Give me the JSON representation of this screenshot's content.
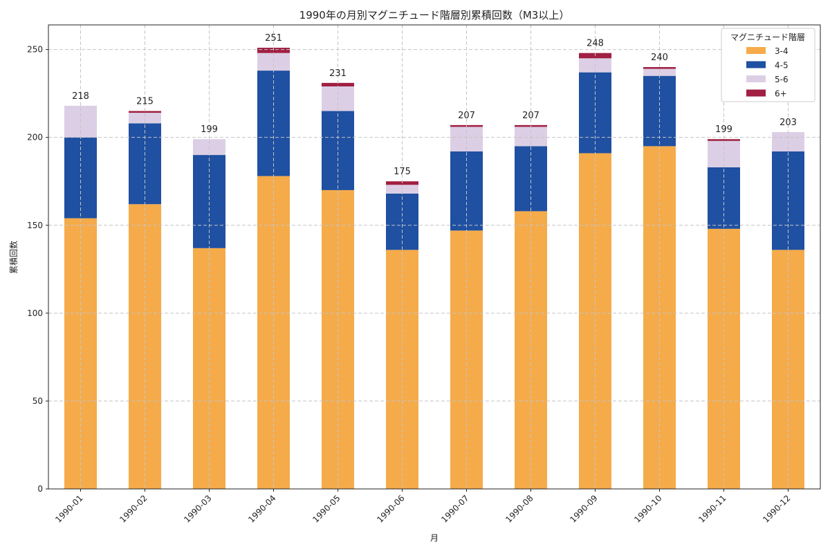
{
  "chart_data": {
    "type": "bar",
    "stacked": true,
    "title": "1990年の月別マグニチュード階層別累積回数（M3以上）",
    "xlabel": "月",
    "ylabel": "累積回数",
    "ylim": [
      0,
      264
    ],
    "yticks": [
      0,
      50,
      100,
      150,
      200,
      250
    ],
    "grid": true,
    "legend": {
      "title": "マグニチュード階層",
      "placement": "top-right"
    },
    "categories": [
      "1990-01",
      "1990-02",
      "1990-03",
      "1990-04",
      "1990-05",
      "1990-06",
      "1990-07",
      "1990-08",
      "1990-09",
      "1990-10",
      "1990-11",
      "1990-12"
    ],
    "series": [
      {
        "name": "3-4",
        "color": "#f5ab4a",
        "values": [
          154,
          162,
          137,
          178,
          170,
          136,
          147,
          158,
          191,
          195,
          148,
          136
        ]
      },
      {
        "name": "4-5",
        "color": "#1f50a1",
        "values": [
          46,
          46,
          53,
          60,
          45,
          32,
          45,
          37,
          46,
          40,
          35,
          56
        ]
      },
      {
        "name": "5-6",
        "color": "#dccfe5",
        "values": [
          18,
          6,
          9,
          10,
          14,
          5,
          14,
          11,
          8,
          4,
          15,
          11
        ]
      },
      {
        "name": "6+",
        "color": "#a01f42",
        "values": [
          0,
          1,
          0,
          3,
          2,
          2,
          1,
          1,
          3,
          1,
          1,
          0
        ]
      }
    ],
    "totals": [
      218,
      215,
      199,
      251,
      231,
      175,
      207,
      207,
      248,
      240,
      199,
      203
    ]
  }
}
